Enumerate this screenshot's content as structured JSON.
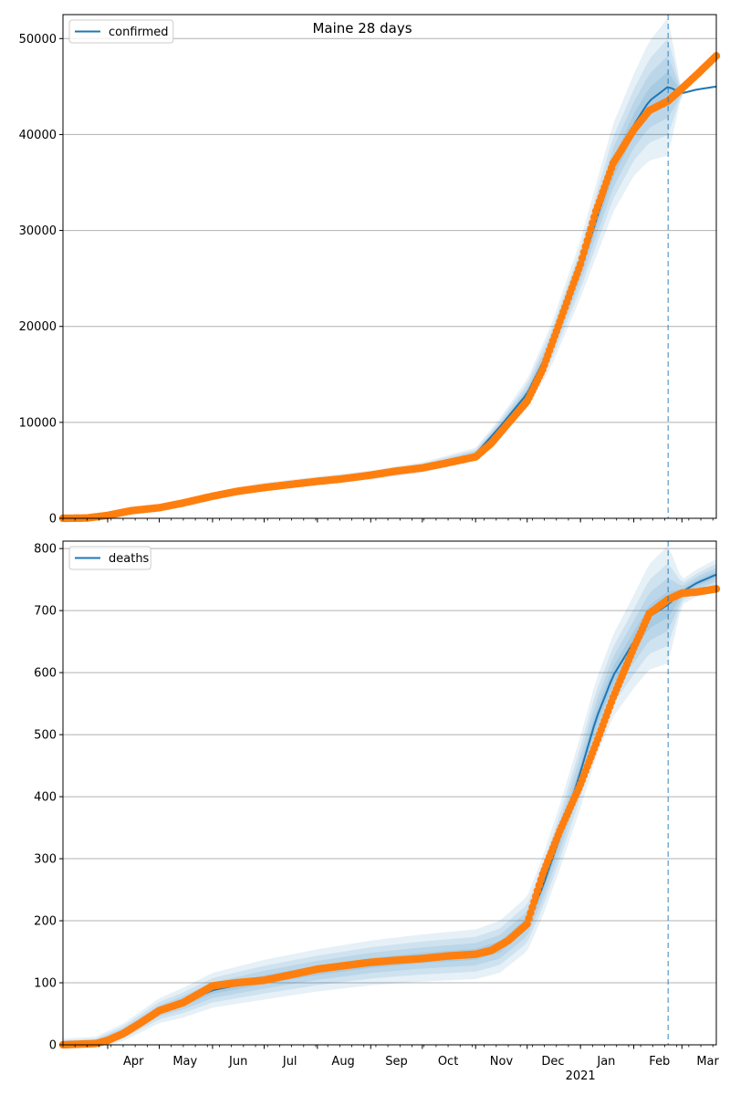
{
  "figure_title": "Maine 28 days",
  "colors": {
    "model": "#1f77b4",
    "observed": "#ff7f0e",
    "band": "#1f77b4",
    "grid": "#b0b0b0",
    "cutoff": "#1f77b4"
  },
  "chart_data": [
    {
      "type": "line",
      "legend": "confirmed",
      "legend_placement": "top-left",
      "grid": "y",
      "xlim": [
        "2020-03-06",
        "2021-03-21"
      ],
      "ylim": [
        0,
        52500
      ],
      "yticks": [
        0,
        10000,
        20000,
        30000,
        40000,
        50000
      ],
      "ytick_labels": [
        "0",
        "10000",
        "20000",
        "30000",
        "40000",
        "50000"
      ],
      "cutoff_date": "2021-02-21",
      "model_series": {
        "name": "confirmed",
        "x": [
          "2020-03-06",
          "2020-04-01",
          "2020-05-01",
          "2020-06-01",
          "2020-07-01",
          "2020-08-01",
          "2020-09-01",
          "2020-10-01",
          "2020-11-01",
          "2020-11-15",
          "2020-12-01",
          "2020-12-15",
          "2021-01-01",
          "2021-01-10",
          "2021-01-20",
          "2021-02-01",
          "2021-02-10",
          "2021-02-21",
          "2021-03-01",
          "2021-03-10",
          "2021-03-21"
        ],
        "y": [
          0,
          300,
          1100,
          2300,
          3300,
          3900,
          4500,
          5300,
          6700,
          9500,
          13000,
          18000,
          26000,
          31000,
          36500,
          41000,
          43500,
          45000,
          44300,
          44700,
          45000
        ],
        "band_half_width": [
          0,
          50,
          150,
          350,
          420,
          450,
          480,
          550,
          650,
          900,
          1500,
          2200,
          3000,
          3800,
          4600,
          5300,
          6200,
          7200,
          0,
          0,
          0
        ]
      },
      "observed": {
        "x": [
          "2020-03-06",
          "2020-03-20",
          "2020-04-01",
          "2020-04-15",
          "2020-05-01",
          "2020-05-15",
          "2020-06-01",
          "2020-06-15",
          "2020-07-01",
          "2020-07-15",
          "2020-08-01",
          "2020-08-15",
          "2020-09-01",
          "2020-09-15",
          "2020-10-01",
          "2020-10-15",
          "2020-11-01",
          "2020-11-10",
          "2020-11-20",
          "2020-12-01",
          "2020-12-10",
          "2020-12-20",
          "2021-01-01",
          "2021-01-10",
          "2021-01-20",
          "2021-02-01",
          "2021-02-10",
          "2021-02-21",
          "2021-03-01",
          "2021-03-10",
          "2021-03-21"
        ],
        "y": [
          0,
          30,
          300,
          800,
          1100,
          1600,
          2300,
          2800,
          3200,
          3500,
          3850,
          4100,
          4500,
          4900,
          5250,
          5750,
          6400,
          7800,
          9900,
          12200,
          15500,
          20500,
          26500,
          32000,
          37000,
          40500,
          42500,
          43500,
          44800,
          46300,
          48200
        ]
      }
    },
    {
      "type": "line",
      "legend": "deaths",
      "legend_placement": "top-left",
      "grid": "y",
      "xlim": [
        "2020-03-06",
        "2021-03-21"
      ],
      "ylim": [
        0,
        812
      ],
      "yticks": [
        0,
        100,
        200,
        300,
        400,
        500,
        600,
        700,
        800
      ],
      "ytick_labels": [
        "0",
        "100",
        "200",
        "300",
        "400",
        "500",
        "600",
        "700",
        "800"
      ],
      "xtick_labels": [
        "Apr",
        "May",
        "Jun",
        "Jul",
        "Aug",
        "Sep",
        "Oct",
        "Nov",
        "Dec",
        "Jan",
        "Feb",
        "Mar"
      ],
      "xtick_dates": [
        "2020-04-01",
        "2020-05-01",
        "2020-06-01",
        "2020-07-01",
        "2020-08-01",
        "2020-09-01",
        "2020-10-01",
        "2020-11-01",
        "2020-12-01",
        "2021-01-01",
        "2021-02-01",
        "2021-03-01"
      ],
      "year_label": "2021",
      "cutoff_date": "2021-02-21",
      "model_series": {
        "name": "deaths",
        "x": [
          "2020-03-06",
          "2020-03-25",
          "2020-04-10",
          "2020-05-01",
          "2020-05-15",
          "2020-06-01",
          "2020-07-01",
          "2020-08-01",
          "2020-09-01",
          "2020-10-01",
          "2020-11-01",
          "2020-11-15",
          "2020-12-01",
          "2020-12-10",
          "2020-12-20",
          "2021-01-01",
          "2021-01-10",
          "2021-01-20",
          "2021-02-01",
          "2021-02-10",
          "2021-02-21",
          "2021-03-01",
          "2021-03-10",
          "2021-03-21"
        ],
        "y": [
          0,
          3,
          20,
          55,
          68,
          88,
          105,
          120,
          132,
          140,
          146,
          158,
          195,
          255,
          335,
          440,
          525,
          595,
          650,
          690,
          710,
          730,
          745,
          758
        ],
        "band_half_width": [
          10,
          10,
          14,
          20,
          24,
          28,
          32,
          34,
          36,
          38,
          40,
          42,
          44,
          48,
          52,
          58,
          62,
          66,
          75,
          85,
          95,
          20,
          22,
          25
        ]
      },
      "observed": {
        "x": [
          "2020-03-06",
          "2020-03-25",
          "2020-04-01",
          "2020-04-10",
          "2020-04-20",
          "2020-05-01",
          "2020-05-15",
          "2020-06-01",
          "2020-06-15",
          "2020-07-01",
          "2020-07-15",
          "2020-08-01",
          "2020-08-15",
          "2020-09-01",
          "2020-09-15",
          "2020-10-01",
          "2020-10-15",
          "2020-11-01",
          "2020-11-10",
          "2020-11-20",
          "2020-12-01",
          "2020-12-10",
          "2020-12-20",
          "2021-01-01",
          "2021-01-10",
          "2021-01-20",
          "2021-02-01",
          "2021-02-10",
          "2021-02-21",
          "2021-03-01",
          "2021-03-10",
          "2021-03-21"
        ],
        "y": [
          0,
          2,
          7,
          18,
          35,
          55,
          68,
          95,
          100,
          104,
          112,
          122,
          127,
          133,
          136,
          139,
          143,
          146,
          152,
          168,
          195,
          275,
          345,
          420,
          485,
          560,
          640,
          695,
          718,
          728,
          730,
          735
        ]
      }
    }
  ]
}
